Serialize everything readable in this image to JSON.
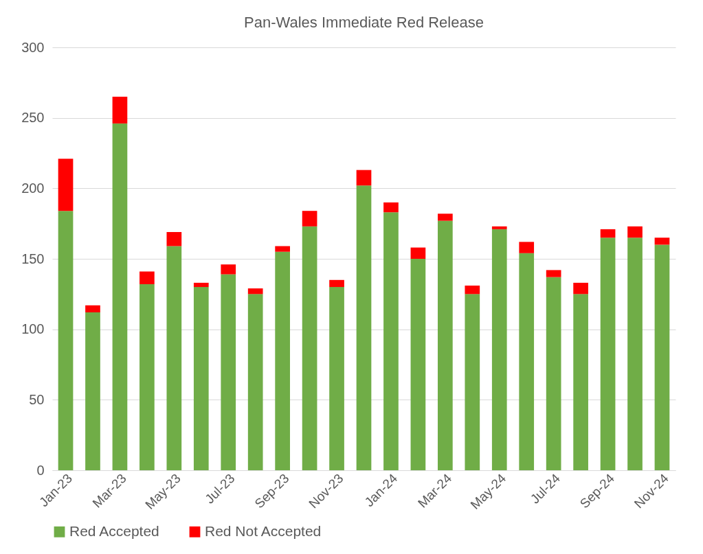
{
  "chart_data": {
    "type": "bar",
    "title": "Pan-Wales Immediate Red Release",
    "stacked": true,
    "categories": [
      "Jan-23",
      null,
      "Mar-23",
      null,
      "May-23",
      null,
      "Jul-23",
      null,
      "Sep-23",
      null,
      "Nov-23",
      null,
      "Jan-24",
      null,
      "Mar-24",
      null,
      "May-24",
      null,
      "Jul-24",
      null,
      "Sep-24",
      null,
      "Nov-24"
    ],
    "series": [
      {
        "name": "Red Accepted",
        "color": "#70ad47",
        "values": [
          184,
          112,
          246,
          132,
          159,
          130,
          139,
          125,
          155,
          173,
          130,
          202,
          183,
          150,
          177,
          125,
          171,
          154,
          137,
          125,
          165,
          165,
          160
        ]
      },
      {
        "name": "Red Not Accepted",
        "color": "#ff0000",
        "values": [
          37,
          5,
          19,
          9,
          10,
          3,
          7,
          4,
          4,
          11,
          5,
          11,
          7,
          8,
          5,
          6,
          2,
          8,
          5,
          8,
          6,
          8,
          5
        ]
      }
    ],
    "ylim": [
      0,
      300
    ],
    "yticks": [
      0,
      50,
      100,
      150,
      200,
      250,
      300
    ],
    "grid": "y",
    "legend": "bottom"
  }
}
